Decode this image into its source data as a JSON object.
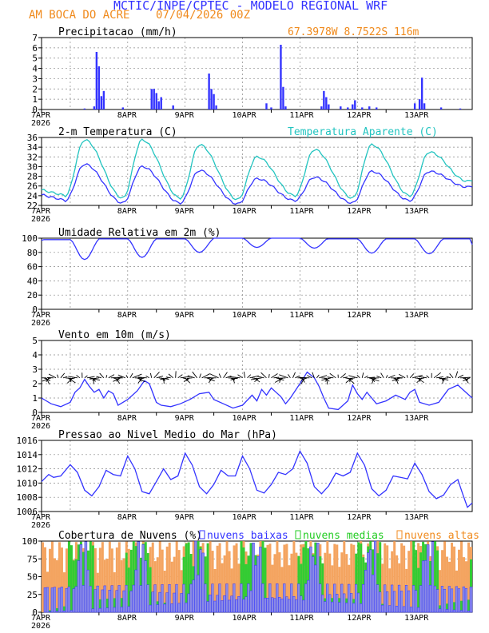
{
  "header": {
    "title": "MCTIC/INPE/CPTEC - MODELO REGIONAL WRF",
    "location": "AM BOCA DO ACRE",
    "run": "07/04/2026 00Z",
    "coords": "67.3978W 8.7522S 116m"
  },
  "colors": {
    "title": "#3333ff",
    "orange": "#f08a1c",
    "blue": "#3333ff",
    "cyan": "#22c4c0",
    "green": "#22cc22",
    "low_cloud_fill": "#8a8ae6",
    "mid_cloud_fill": "#33cc33",
    "high_cloud_fill": "#f4a460",
    "grid": "#888888"
  },
  "x_axis": {
    "ticks": [
      "7APR",
      "8APR",
      "9APR",
      "10APR",
      "11APR",
      "12APR",
      "13APR"
    ],
    "year": "2026"
  },
  "chart_data": [
    {
      "id": "precip",
      "type": "bar",
      "title": "Precipitacao (mm/h)",
      "ylim": [
        0,
        7
      ],
      "yticks": [
        0,
        1,
        2,
        3,
        4,
        5,
        6,
        7
      ],
      "x": "hours since 07APR 00Z",
      "bars": [
        [
          18,
          0.1
        ],
        [
          22,
          0.3
        ],
        [
          23,
          5.6
        ],
        [
          24,
          4.2
        ],
        [
          25,
          1.3
        ],
        [
          26,
          1.8
        ],
        [
          34,
          0.2
        ],
        [
          46,
          2.0
        ],
        [
          47,
          2.0
        ],
        [
          48,
          1.6
        ],
        [
          49,
          0.8
        ],
        [
          50,
          1.2
        ],
        [
          55,
          0.4
        ],
        [
          70,
          3.5
        ],
        [
          71,
          2.0
        ],
        [
          72,
          1.5
        ],
        [
          73,
          0.4
        ],
        [
          94,
          0.6
        ],
        [
          96,
          0.2
        ],
        [
          100,
          6.3
        ],
        [
          101,
          2.2
        ],
        [
          102,
          0.3
        ],
        [
          117,
          0.3
        ],
        [
          118,
          1.8
        ],
        [
          119,
          1.2
        ],
        [
          120,
          0.5
        ],
        [
          125,
          0.3
        ],
        [
          128,
          0.2
        ],
        [
          130,
          0.5
        ],
        [
          131,
          0.9
        ],
        [
          134,
          0.2
        ],
        [
          137,
          0.3
        ],
        [
          140,
          0.2
        ],
        [
          156,
          0.6
        ],
        [
          158,
          1.0
        ],
        [
          159,
          3.1
        ],
        [
          160,
          0.6
        ],
        [
          167,
          0.2
        ],
        [
          175,
          0.1
        ]
      ]
    },
    {
      "id": "temp",
      "type": "line",
      "title": "2-m Temperatura (C)",
      "title_right": "Temperatura Aparente (C)",
      "ylim": [
        22,
        36
      ],
      "yticks": [
        22,
        24,
        26,
        28,
        30,
        32,
        34,
        36
      ],
      "series": [
        {
          "name": "2-m Temperatura (C)",
          "daily": [
            {
              "min": 23.0,
              "max": 30.5
            },
            {
              "min": 22.5,
              "max": 30.0
            },
            {
              "min": 22.5,
              "max": 29.2
            },
            {
              "min": 22.3,
              "max": 27.5
            },
            {
              "min": 23.0,
              "max": 27.8
            },
            {
              "min": 22.5,
              "max": 29.0
            },
            {
              "min": 23.0,
              "max": 29.0
            }
          ],
          "end": 25.8
        },
        {
          "name": "Temperatura Aparente (C)",
          "daily": [
            {
              "min": 24.0,
              "max": 35.5
            },
            {
              "min": 23.5,
              "max": 35.5
            },
            {
              "min": 23.5,
              "max": 34.5
            },
            {
              "min": 23.2,
              "max": 32.0
            },
            {
              "min": 24.0,
              "max": 33.5
            },
            {
              "min": 23.5,
              "max": 34.5
            },
            {
              "min": 24.0,
              "max": 33.0
            }
          ],
          "end": 27.0
        }
      ]
    },
    {
      "id": "rh",
      "type": "line",
      "title": "Umidade Relativa em 2m (%)",
      "ylim": [
        0,
        100
      ],
      "yticks": [
        0,
        20,
        40,
        60,
        80,
        100
      ],
      "series": [
        {
          "name": "Umidade Relativa em 2m (%)",
          "daily": [
            {
              "max": 98,
              "min": 70
            },
            {
              "max": 99,
              "min": 73
            },
            {
              "max": 99,
              "min": 80
            },
            {
              "max": 100,
              "min": 87
            },
            {
              "max": 100,
              "min": 86
            },
            {
              "max": 99,
              "min": 79
            },
            {
              "max": 99,
              "min": 78
            }
          ],
          "end": 91
        }
      ]
    },
    {
      "id": "wind",
      "type": "line",
      "title": "Vento em 10m (m/s)",
      "ylim": [
        0,
        5
      ],
      "yticks": [
        0,
        1,
        2,
        3,
        4,
        5
      ],
      "note": "wind speed line with wind direction arrows along the 2.4 m/s reference line",
      "speed": [
        [
          0,
          1.0
        ],
        [
          4,
          0.6
        ],
        [
          8,
          0.4
        ],
        [
          12,
          0.7
        ],
        [
          14,
          1.4
        ],
        [
          16,
          1.7
        ],
        [
          18,
          2.3
        ],
        [
          20,
          1.8
        ],
        [
          22,
          1.4
        ],
        [
          24,
          1.6
        ],
        [
          26,
          1.0
        ],
        [
          28,
          1.5
        ],
        [
          30,
          1.3
        ],
        [
          32,
          0.5
        ],
        [
          36,
          0.9
        ],
        [
          40,
          1.5
        ],
        [
          43,
          2.2
        ],
        [
          45,
          2.0
        ],
        [
          48,
          0.7
        ],
        [
          50,
          0.5
        ],
        [
          54,
          0.4
        ],
        [
          58,
          0.6
        ],
        [
          62,
          0.9
        ],
        [
          66,
          1.3
        ],
        [
          70,
          1.4
        ],
        [
          72,
          0.9
        ],
        [
          76,
          0.6
        ],
        [
          80,
          0.3
        ],
        [
          84,
          0.5
        ],
        [
          88,
          1.2
        ],
        [
          90,
          0.8
        ],
        [
          92,
          1.6
        ],
        [
          94,
          1.2
        ],
        [
          96,
          1.7
        ],
        [
          98,
          1.4
        ],
        [
          100,
          1.1
        ],
        [
          102,
          0.6
        ],
        [
          104,
          1.0
        ],
        [
          108,
          2.0
        ],
        [
          111,
          2.8
        ],
        [
          114,
          2.4
        ],
        [
          116,
          1.8
        ],
        [
          118,
          1.0
        ],
        [
          120,
          0.3
        ],
        [
          124,
          0.2
        ],
        [
          128,
          0.8
        ],
        [
          130,
          1.9
        ],
        [
          132,
          1.3
        ],
        [
          134,
          0.9
        ],
        [
          136,
          1.4
        ],
        [
          138,
          1.0
        ],
        [
          140,
          0.6
        ],
        [
          144,
          0.8
        ],
        [
          148,
          1.2
        ],
        [
          152,
          0.9
        ],
        [
          154,
          1.4
        ],
        [
          156,
          1.6
        ],
        [
          158,
          0.7
        ],
        [
          162,
          0.5
        ],
        [
          166,
          0.7
        ],
        [
          170,
          1.6
        ],
        [
          174,
          1.9
        ],
        [
          178,
          1.3
        ],
        [
          180,
          1.0
        ]
      ]
    },
    {
      "id": "pressure",
      "type": "line",
      "title": "Pressao ao Nivel Medio do Mar (hPa)",
      "ylim": [
        1006,
        1016
      ],
      "yticks": [
        1006,
        1008,
        1010,
        1012,
        1014,
        1016
      ],
      "series": [
        {
          "name": "Pressao ao Nivel Medio do Mar (hPa)",
          "points": [
            [
              0,
              1010.2
            ],
            [
              3,
              1011.2
            ],
            [
              5,
              1010.8
            ],
            [
              8,
              1011.0
            ],
            [
              12,
              1012.6
            ],
            [
              15,
              1011.5
            ],
            [
              18,
              1009.0
            ],
            [
              21,
              1008.2
            ],
            [
              24,
              1009.5
            ],
            [
              27,
              1011.8
            ],
            [
              30,
              1011.2
            ],
            [
              33,
              1011.0
            ],
            [
              36,
              1013.8
            ],
            [
              39,
              1012.0
            ],
            [
              42,
              1008.8
            ],
            [
              45,
              1008.5
            ],
            [
              48,
              1010.2
            ],
            [
              51,
              1012.0
            ],
            [
              54,
              1010.5
            ],
            [
              57,
              1011.0
            ],
            [
              60,
              1014.2
            ],
            [
              63,
              1012.5
            ],
            [
              66,
              1009.5
            ],
            [
              69,
              1008.5
            ],
            [
              72,
              1009.8
            ],
            [
              75,
              1011.8
            ],
            [
              78,
              1011.0
            ],
            [
              81,
              1011.0
            ],
            [
              84,
              1013.8
            ],
            [
              87,
              1012.0
            ],
            [
              90,
              1009.0
            ],
            [
              93,
              1008.6
            ],
            [
              96,
              1009.8
            ],
            [
              99,
              1011.5
            ],
            [
              102,
              1011.2
            ],
            [
              105,
              1012.0
            ],
            [
              108,
              1014.5
            ],
            [
              111,
              1012.8
            ],
            [
              114,
              1009.5
            ],
            [
              117,
              1008.5
            ],
            [
              120,
              1009.6
            ],
            [
              123,
              1011.4
            ],
            [
              126,
              1011.0
            ],
            [
              129,
              1011.5
            ],
            [
              132,
              1014.2
            ],
            [
              135,
              1012.5
            ],
            [
              138,
              1009.2
            ],
            [
              141,
              1008.2
            ],
            [
              144,
              1009.0
            ],
            [
              147,
              1011.0
            ],
            [
              150,
              1010.8
            ],
            [
              153,
              1010.6
            ],
            [
              156,
              1012.8
            ],
            [
              159,
              1011.2
            ],
            [
              162,
              1008.8
            ],
            [
              165,
              1007.8
            ],
            [
              168,
              1008.3
            ],
            [
              171,
              1009.8
            ],
            [
              174,
              1010.5
            ],
            [
              176,
              1008.5
            ],
            [
              178,
              1006.6
            ],
            [
              180,
              1007.2
            ]
          ]
        }
      ]
    },
    {
      "id": "clouds",
      "type": "bar",
      "title": "Cobertura de Nuvens (%)",
      "ylim": [
        0,
        100
      ],
      "yticks": [
        0,
        25,
        50,
        75,
        100
      ],
      "legend": [
        "nuvens baixas",
        "nuvens medias",
        "nuvens altas"
      ],
      "note": "hourly stacked/overlaid cloud cover bars: low (blue), medium (green), high (orange)"
    }
  ]
}
